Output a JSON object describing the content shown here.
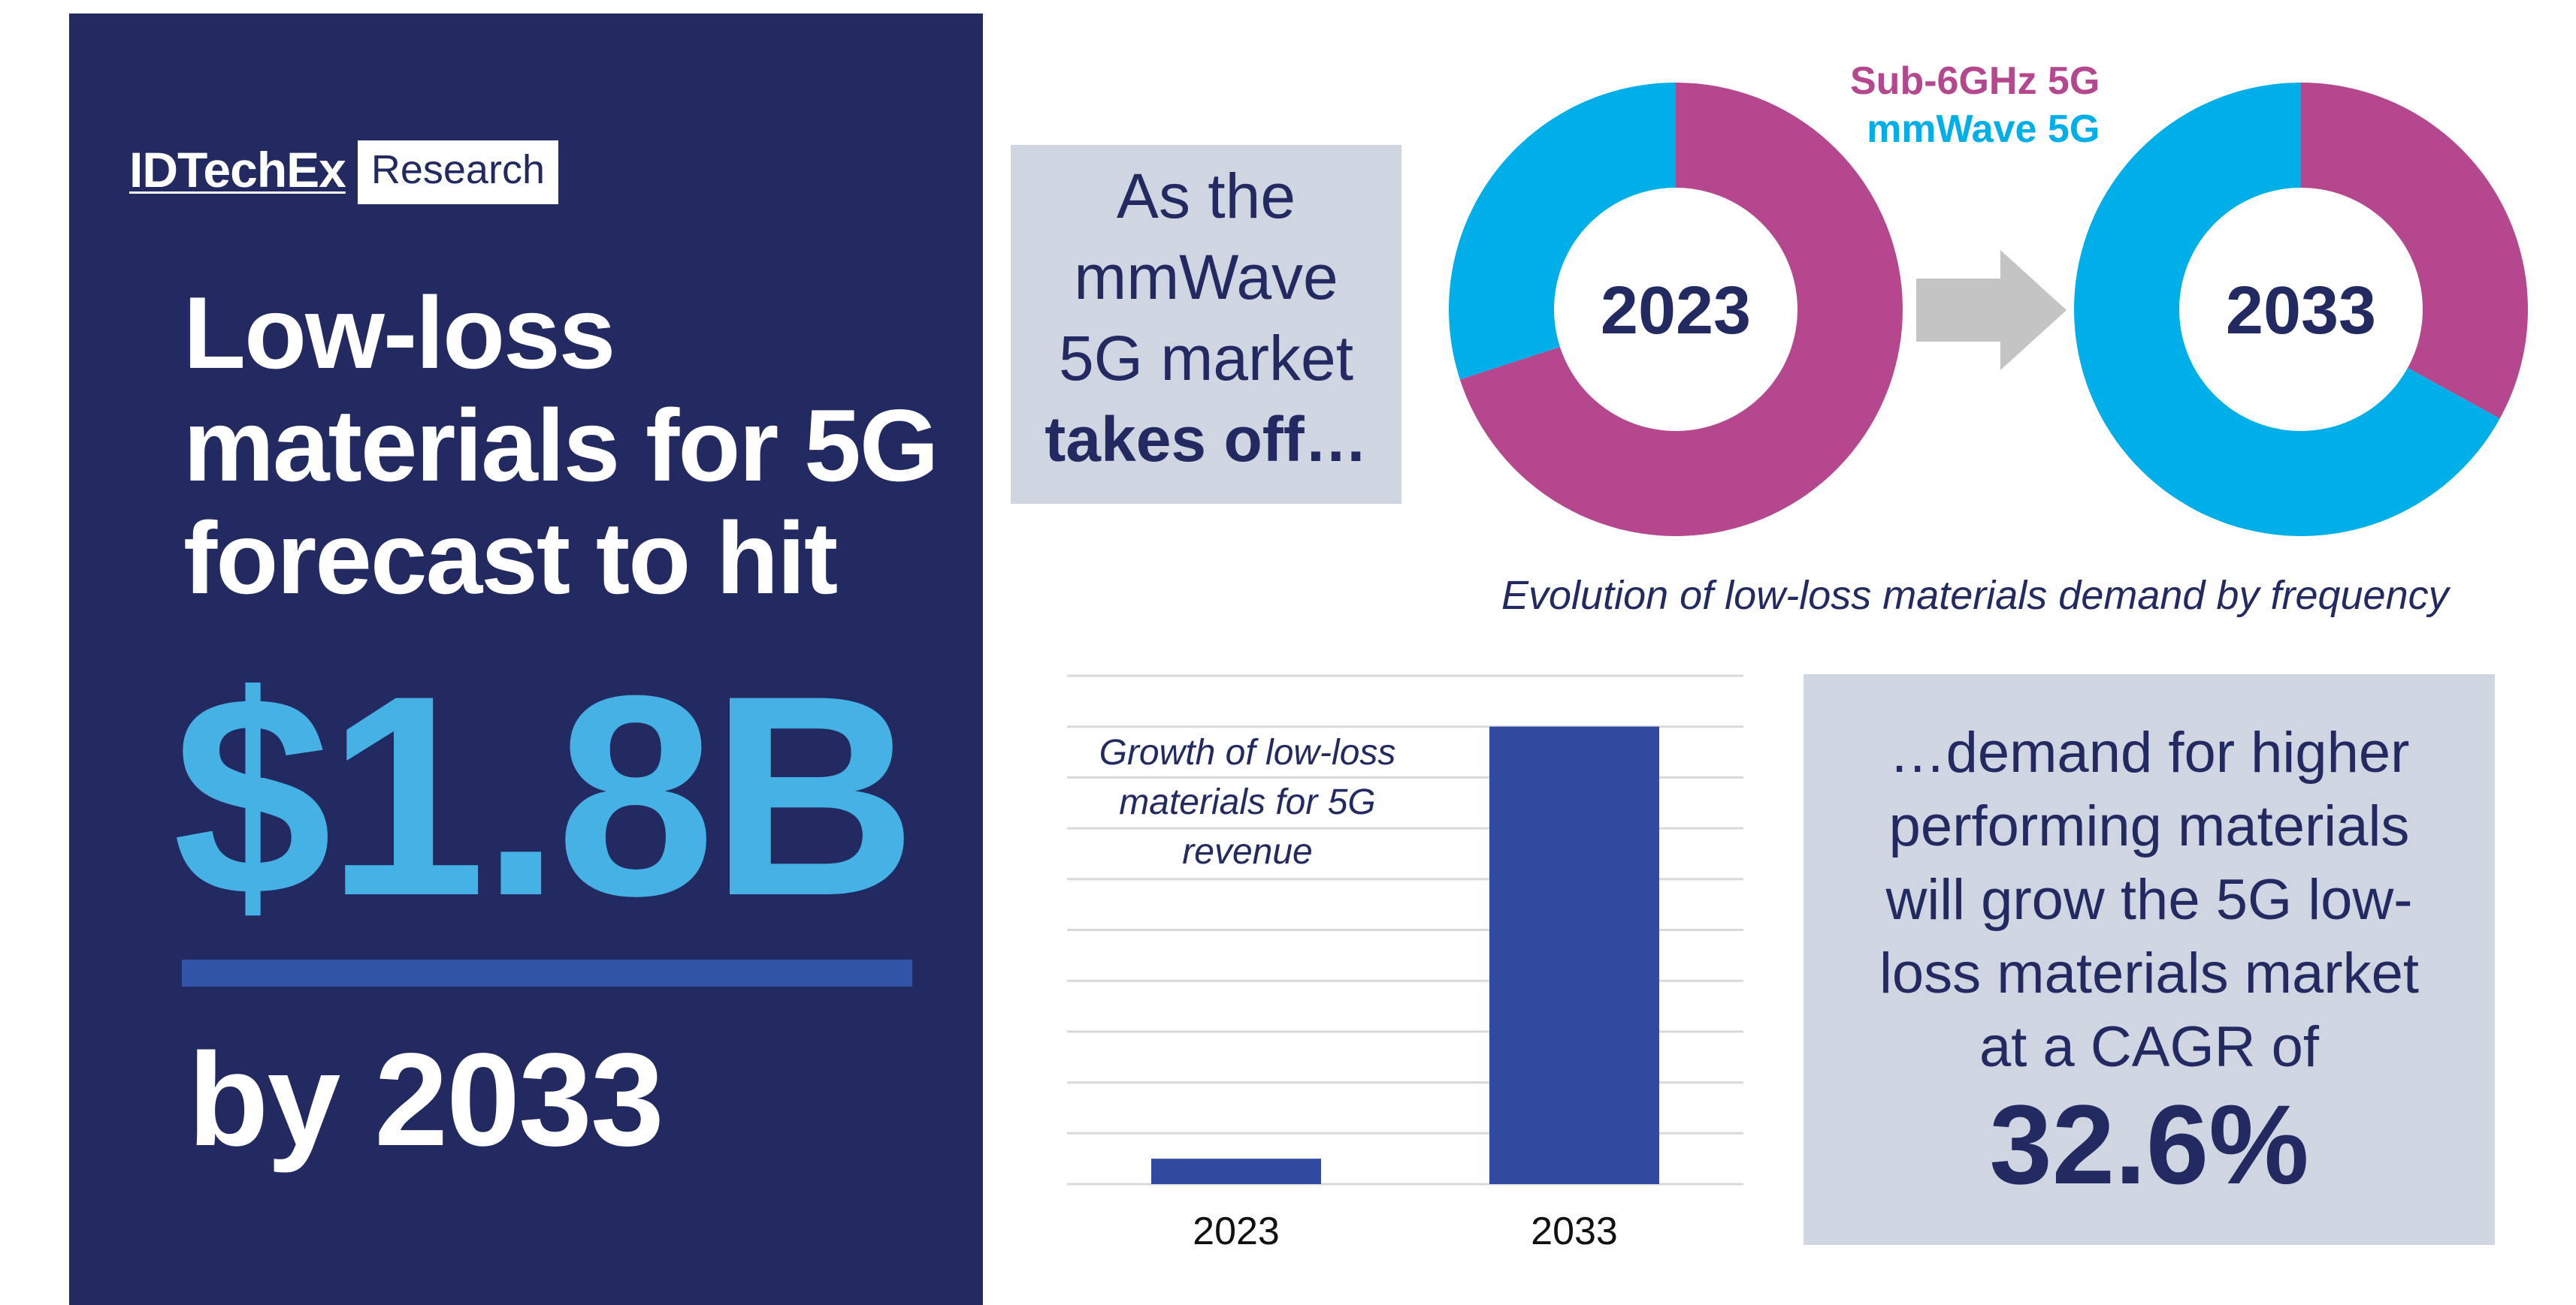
{
  "brand": {
    "name": "IDTechEx",
    "tag": "Research"
  },
  "headline": {
    "lines": [
      "Low-loss",
      "materials for 5G",
      "forecast to hit"
    ],
    "figure": "$1.8B",
    "by": "by 2033"
  },
  "takeoff": {
    "lines": [
      "As the",
      "mmWave",
      "5G market"
    ],
    "bold": "takes off…"
  },
  "donut_legend": {
    "sub6": "Sub-6GHz 5G",
    "mmwave": "mmWave 5G"
  },
  "donut_caption": "Evolution of low-loss materials demand by frequency",
  "cagr": {
    "lines": [
      "…demand for higher",
      "performing materials",
      "will grow the 5G low-",
      "loss materials market",
      "at a CAGR of"
    ],
    "value": "32.6%"
  },
  "colors": {
    "navy": "#232a62",
    "sky": "#45b1e5",
    "magenta": "#b5478f",
    "cyan": "#00aee8",
    "bar": "#2f4a9e",
    "panel_grey": "#cfd5e1",
    "arrow": "#c4c4c4"
  },
  "chart_data": [
    {
      "type": "pie",
      "title": "2023",
      "categories": [
        "Sub-6GHz 5G",
        "mmWave 5G"
      ],
      "values": [
        70,
        30
      ]
    },
    {
      "type": "pie",
      "title": "2033",
      "categories": [
        "Sub-6GHz 5G",
        "mmWave 5G"
      ],
      "values": [
        33,
        67
      ]
    },
    {
      "type": "bar",
      "title": "",
      "annotation": "Growth of low-loss materials for 5G revenue",
      "categories": [
        "2023",
        "2033"
      ],
      "values": [
        0.1,
        1.8
      ],
      "ylim": [
        0,
        2.0
      ],
      "grid": true
    }
  ]
}
